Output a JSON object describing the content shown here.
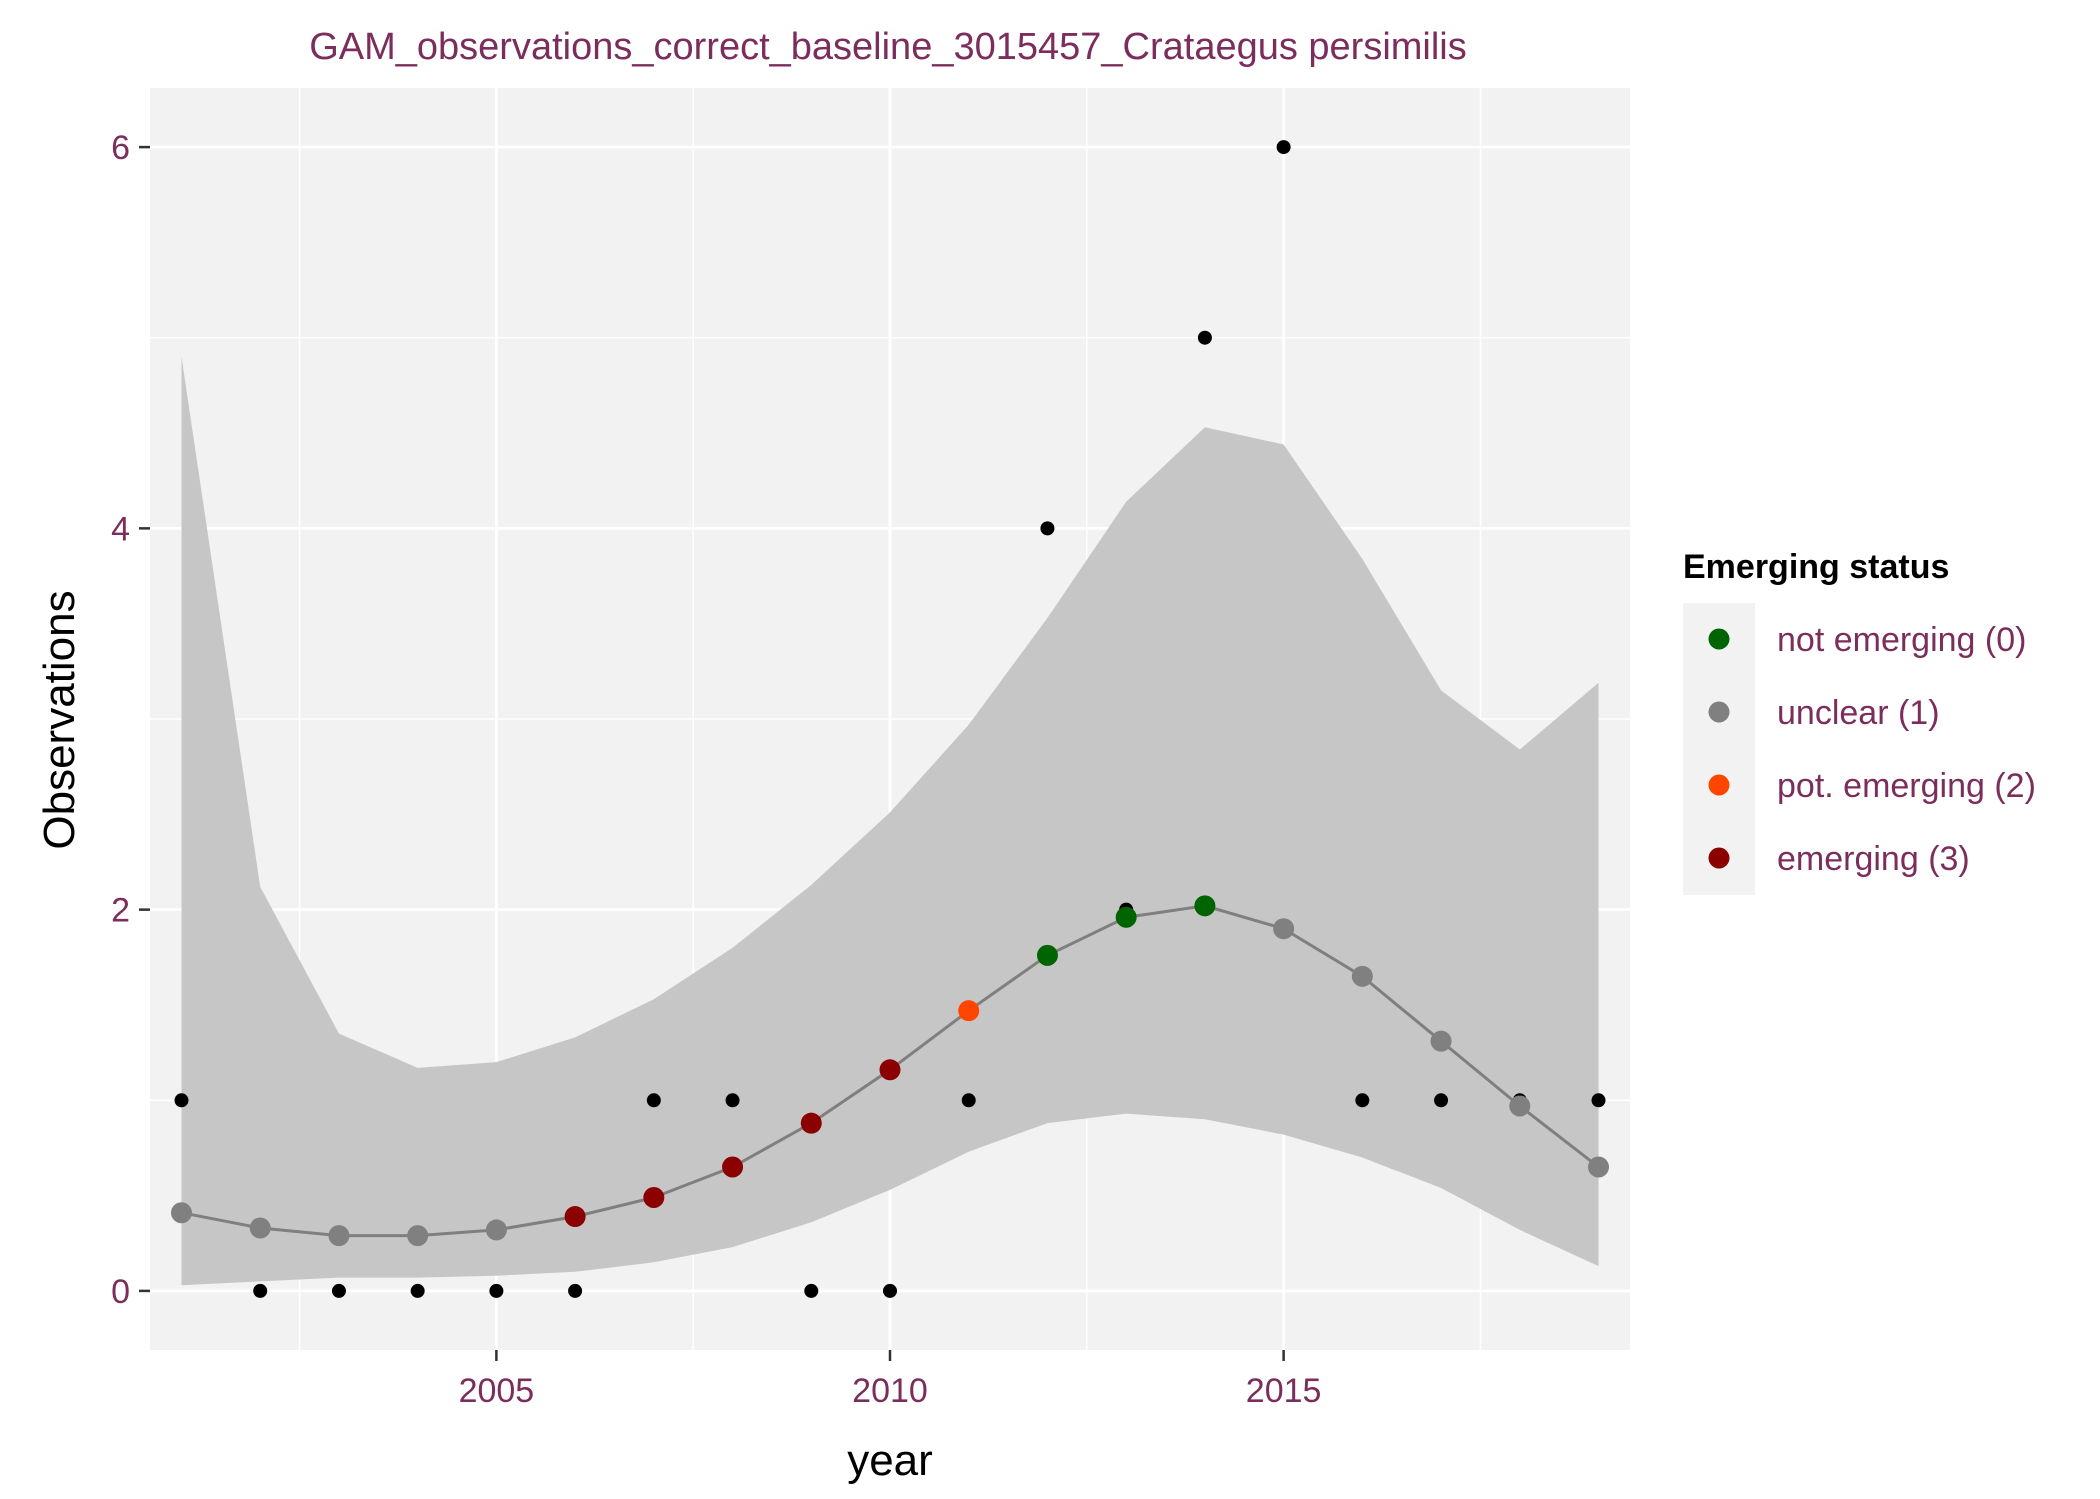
{
  "chart_data": {
    "type": "scatter",
    "title": "GAM_observations_correct_baseline_3015457_Crataegus persimilis",
    "xlabel": "year",
    "ylabel": "Observations",
    "xlim": [
      2000.6,
      2019.4
    ],
    "ylim": [
      -0.31,
      6.31
    ],
    "x_ticks": [
      2005,
      2010,
      2015
    ],
    "x_tick_labels": [
      "2005",
      "2010",
      "2015"
    ],
    "y_ticks": [
      0,
      2,
      4,
      6
    ],
    "y_tick_labels": [
      "0",
      "2",
      "4",
      "6"
    ],
    "grid": true,
    "legend_position": "right",
    "colors": {
      "panel_bg": "#F2F2F2",
      "grid": "#FFFFFF",
      "ribbon": "#C6C6C6",
      "fit_line": "#7F7F7F",
      "observed": "#000000",
      "text_accent": "#7B2D5B"
    },
    "observed": {
      "x": [
        2001,
        2002,
        2003,
        2004,
        2005,
        2006,
        2007,
        2008,
        2009,
        2010,
        2011,
        2012,
        2013,
        2014,
        2015,
        2016,
        2017,
        2018,
        2019
      ],
      "y": [
        1,
        0,
        0,
        0,
        0,
        0,
        1,
        1,
        0,
        0,
        1,
        4,
        2,
        5,
        6,
        1,
        1,
        1,
        1
      ]
    },
    "fit": {
      "x": [
        2001,
        2002,
        2003,
        2004,
        2005,
        2006,
        2007,
        2008,
        2009,
        2010,
        2011,
        2012,
        2013,
        2014,
        2015,
        2016,
        2017,
        2018,
        2019
      ],
      "y": [
        0.41,
        0.33,
        0.29,
        0.29,
        0.32,
        0.39,
        0.49,
        0.65,
        0.88,
        1.16,
        1.47,
        1.76,
        1.96,
        2.02,
        1.9,
        1.65,
        1.31,
        0.97,
        0.65
      ],
      "lower": [
        0.03,
        0.05,
        0.07,
        0.07,
        0.08,
        0.1,
        0.15,
        0.23,
        0.36,
        0.53,
        0.73,
        0.88,
        0.93,
        0.9,
        0.82,
        0.7,
        0.54,
        0.32,
        0.13
      ],
      "upper": [
        4.9,
        2.12,
        1.35,
        1.17,
        1.2,
        1.33,
        1.53,
        1.8,
        2.13,
        2.51,
        2.97,
        3.53,
        4.14,
        4.53,
        4.44,
        3.84,
        3.15,
        2.84,
        3.19
      ],
      "status": [
        1,
        1,
        1,
        1,
        1,
        3,
        3,
        3,
        3,
        3,
        2,
        0,
        0,
        0,
        1,
        1,
        1,
        1,
        1
      ]
    },
    "legend": {
      "title": "Emerging status",
      "items": [
        {
          "label": "not emerging (0)",
          "code": 0,
          "color": "#006400"
        },
        {
          "label": "unclear (1)",
          "code": 1,
          "color": "#808080"
        },
        {
          "label": "pot. emerging (2)",
          "code": 2,
          "color": "#FF4500"
        },
        {
          "label": "emerging (3)",
          "code": 3,
          "color": "#8B0000"
        }
      ]
    }
  }
}
